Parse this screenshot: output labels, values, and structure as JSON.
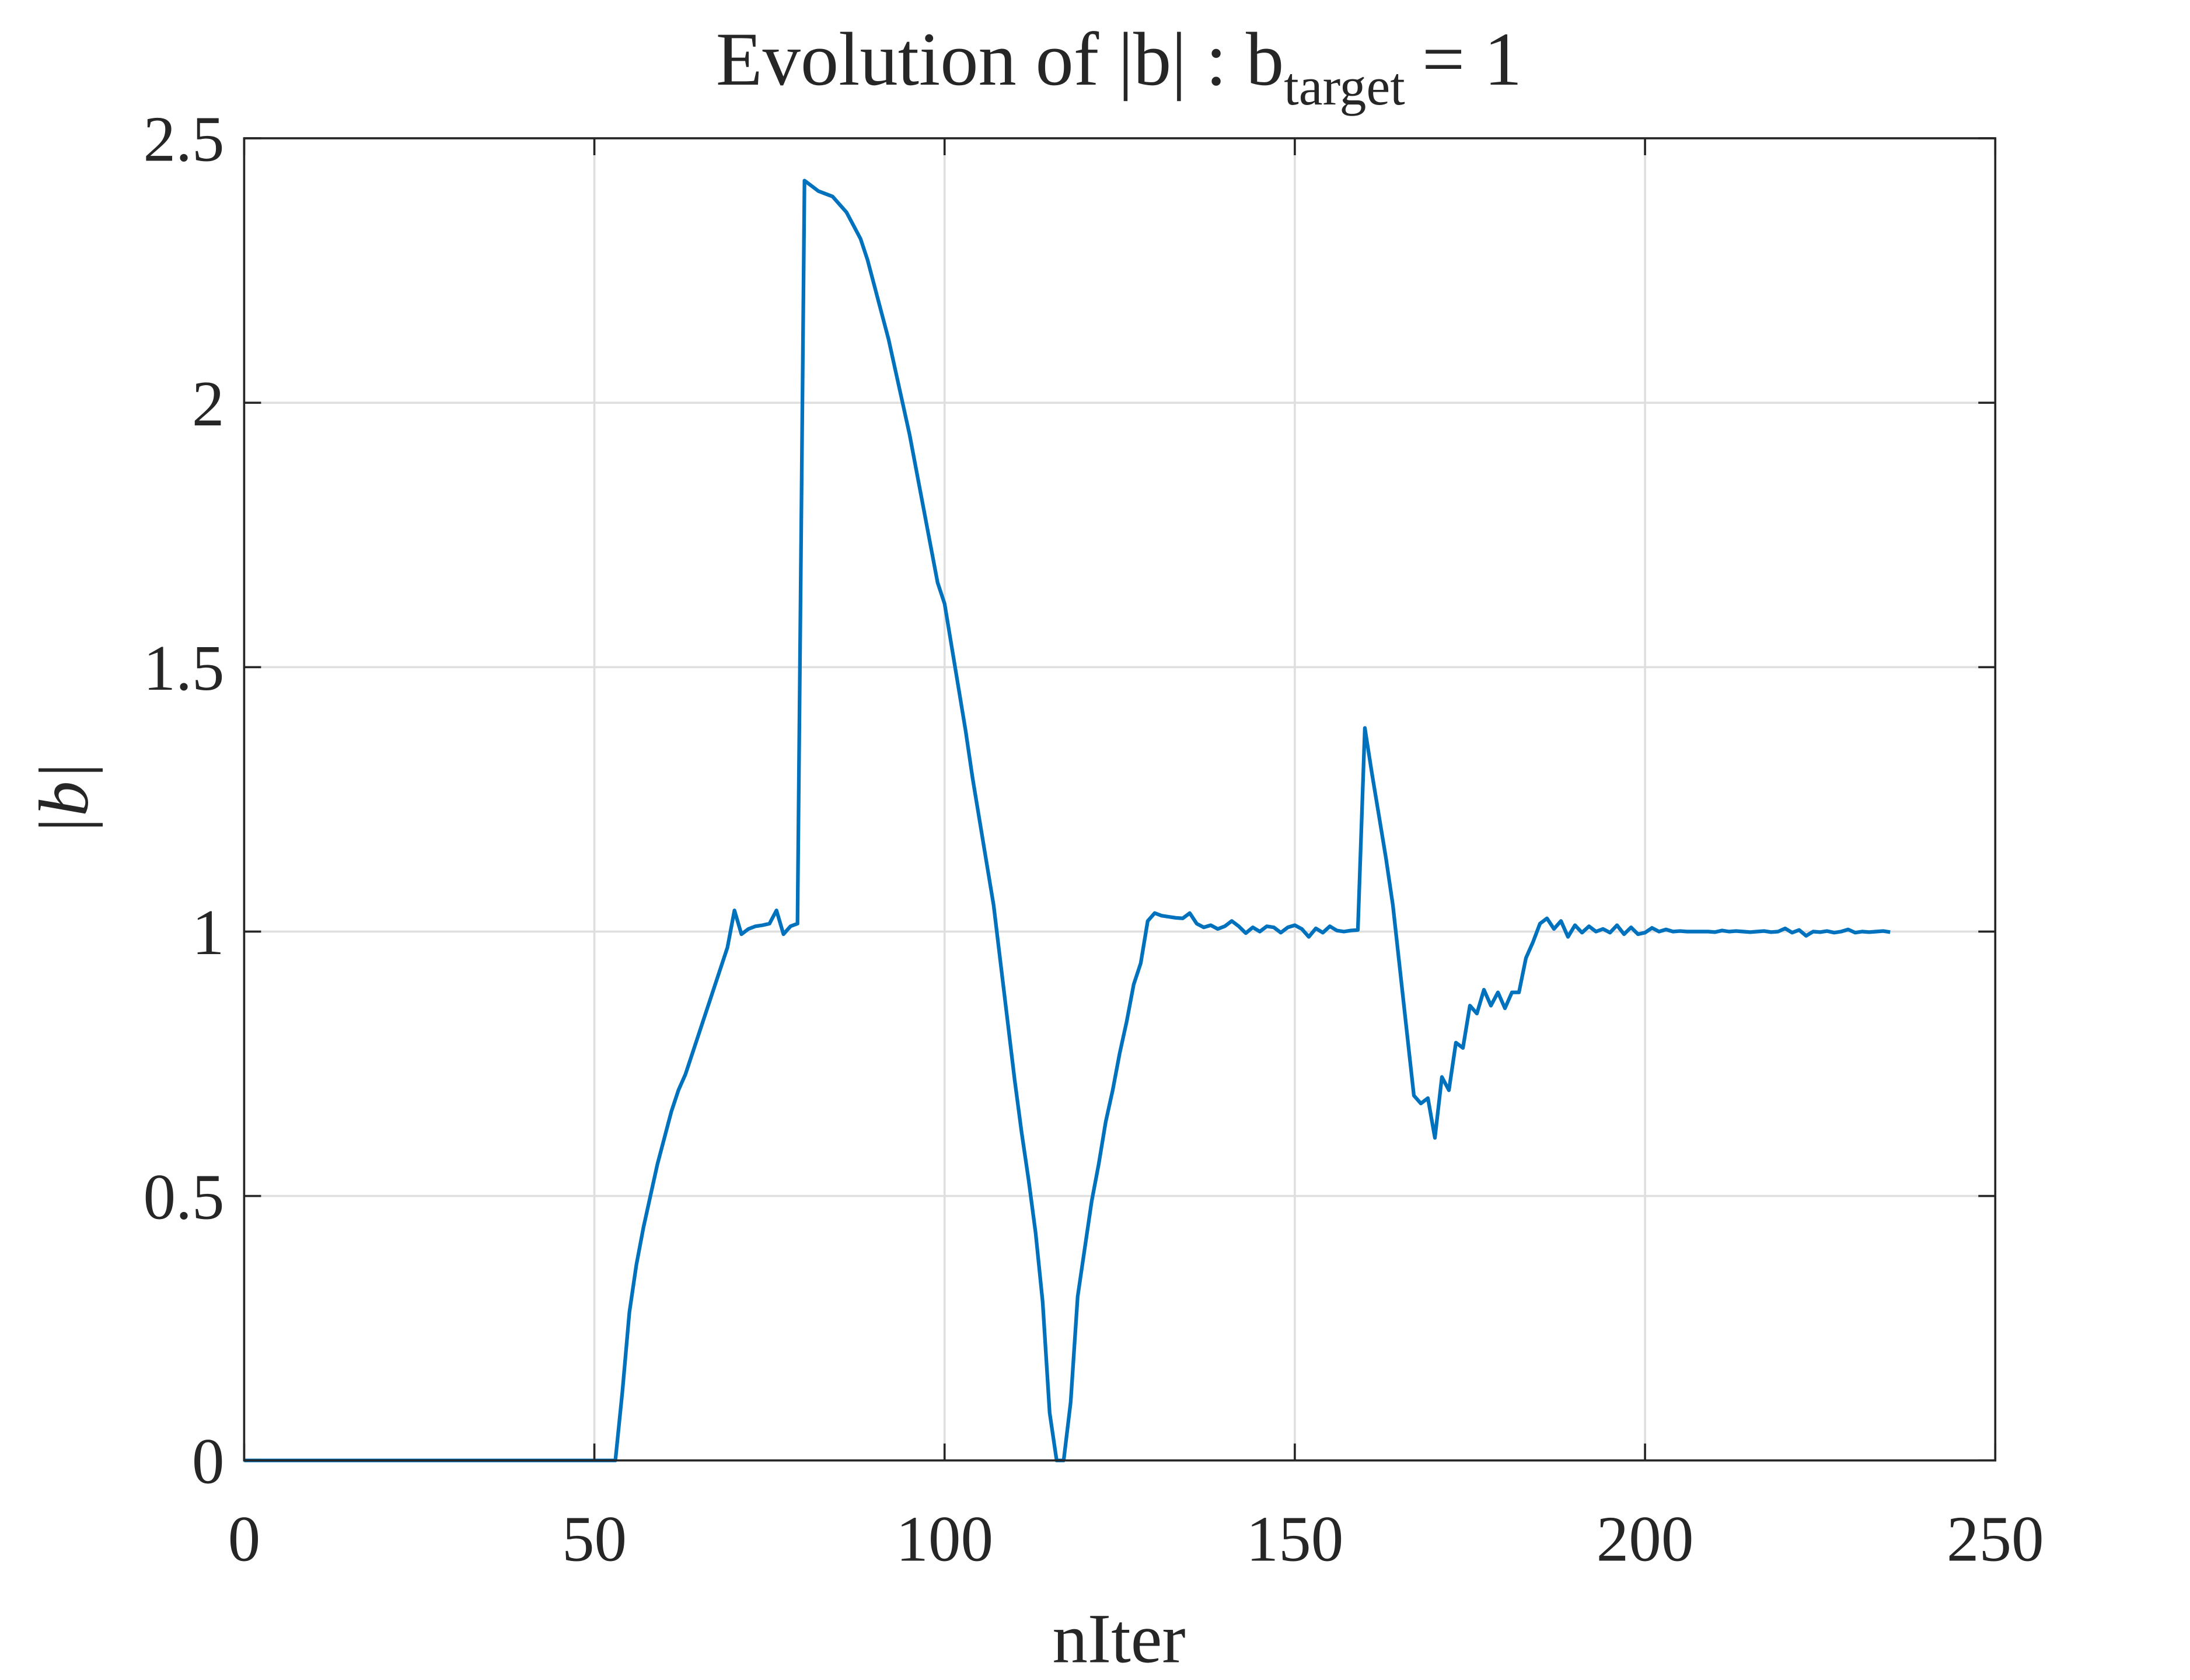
{
  "chart_data": {
    "type": "line",
    "title": {
      "main": "Evolution of |b| : b",
      "subscript": "target",
      "tail": "= 1"
    },
    "xlabel": "nIter",
    "ylabel": "|b|",
    "color": "#0072bd",
    "grid": true,
    "xlim": [
      0,
      250
    ],
    "xticks": [
      0,
      50,
      100,
      150,
      200,
      250
    ],
    "ylim": [
      0,
      2.5
    ],
    "yticks": [
      0,
      0.5,
      1,
      1.5,
      2,
      2.5
    ],
    "x": [
      0,
      1,
      2,
      3,
      4,
      5,
      6,
      7,
      8,
      9,
      10,
      11,
      12,
      13,
      14,
      15,
      16,
      17,
      18,
      19,
      20,
      21,
      22,
      23,
      24,
      25,
      26,
      27,
      28,
      29,
      30,
      31,
      32,
      33,
      34,
      35,
      36,
      37,
      38,
      39,
      40,
      41,
      42,
      43,
      44,
      45,
      46,
      47,
      48,
      49,
      50,
      51,
      52,
      53,
      54,
      55,
      56,
      57,
      58,
      59,
      60,
      61,
      62,
      63,
      64,
      65,
      66,
      67,
      68,
      69,
      70,
      71,
      72,
      73,
      74,
      75,
      76,
      77,
      78,
      79,
      80,
      81,
      82,
      83,
      84,
      85,
      86,
      87,
      88,
      89,
      90,
      91,
      92,
      93,
      94,
      95,
      96,
      97,
      98,
      99,
      100,
      101,
      102,
      103,
      104,
      105,
      106,
      107,
      108,
      109,
      110,
      111,
      112,
      113,
      114,
      115,
      116,
      117,
      118,
      119,
      120,
      121,
      122,
      123,
      124,
      125,
      126,
      127,
      128,
      129,
      130,
      131,
      132,
      133,
      134,
      135,
      136,
      137,
      138,
      139,
      140,
      141,
      142,
      143,
      144,
      145,
      146,
      147,
      148,
      149,
      150,
      151,
      152,
      153,
      154,
      155,
      156,
      157,
      158,
      159,
      160,
      161,
      162,
      163,
      164,
      165,
      166,
      167,
      168,
      169,
      170,
      171,
      172,
      173,
      174,
      175,
      176,
      177,
      178,
      179,
      180,
      181,
      182,
      183,
      184,
      185,
      186,
      187,
      188,
      189,
      190,
      191,
      192,
      193,
      194,
      195,
      196,
      197,
      198,
      199,
      200,
      201,
      202,
      203,
      204,
      205,
      206,
      207,
      208,
      209,
      210,
      211,
      212,
      213,
      214,
      215,
      216,
      217,
      218,
      219,
      220,
      221,
      222,
      223,
      224,
      225,
      226,
      227,
      228,
      229,
      230,
      231,
      232,
      233,
      234,
      235
    ],
    "values": [
      0,
      0,
      0,
      0,
      0,
      0,
      0,
      0,
      0,
      0,
      0,
      0,
      0,
      0,
      0,
      0,
      0,
      0,
      0,
      0,
      0,
      0,
      0,
      0,
      0,
      0,
      0,
      0,
      0,
      0,
      0,
      0,
      0,
      0,
      0,
      0,
      0,
      0,
      0,
      0,
      0,
      0,
      0,
      0,
      0,
      0,
      0,
      0,
      0,
      0,
      0,
      0,
      0,
      0,
      0.13,
      0.28,
      0.37,
      0.44,
      0.5,
      0.56,
      0.61,
      0.66,
      0.7,
      0.73,
      0.77,
      0.81,
      0.85,
      0.89,
      0.93,
      0.97,
      1.04,
      0.995,
      1.005,
      1.01,
      1.012,
      1.015,
      1.04,
      0.995,
      1.01,
      1.015,
      2.42,
      2.41,
      2.4,
      2.395,
      2.39,
      2.375,
      2.36,
      2.335,
      2.31,
      2.27,
      2.22,
      2.17,
      2.12,
      2.06,
      2.0,
      1.94,
      1.87,
      1.8,
      1.73,
      1.66,
      1.62,
      1.54,
      1.46,
      1.38,
      1.29,
      1.21,
      1.13,
      1.05,
      0.94,
      0.83,
      0.72,
      0.62,
      0.53,
      0.43,
      0.3,
      0.09,
      0,
      0,
      0.11,
      0.31,
      0.4,
      0.49,
      0.56,
      0.64,
      0.7,
      0.77,
      0.83,
      0.9,
      0.94,
      1.02,
      1.035,
      1.03,
      1.028,
      1.026,
      1.025,
      1.035,
      1.015,
      1.008,
      1.012,
      1.005,
      1.01,
      1.02,
      1.01,
      0.997,
      1.008,
      1.0,
      1.01,
      1.008,
      0.998,
      1.008,
      1.012,
      1.005,
      0.99,
      1.006,
      0.998,
      1.01,
      1.002,
      1.0,
      1.002,
      1.003,
      1.385,
      1.3,
      1.22,
      1.14,
      1.05,
      0.93,
      0.81,
      0.69,
      0.675,
      0.685,
      0.61,
      0.725,
      0.7,
      0.79,
      0.78,
      0.86,
      0.845,
      0.89,
      0.86,
      0.885,
      0.855,
      0.885,
      0.885,
      0.95,
      0.98,
      1.015,
      1.025,
      1.005,
      1.02,
      0.99,
      1.012,
      0.998,
      1.01,
      1.0,
      1.005,
      0.998,
      1.012,
      0.995,
      1.008,
      0.995,
      0.998,
      1.007,
      1.0,
      1.004,
      1.0,
      1.001,
      1.0,
      1.0,
      1.0,
      1.0,
      0.999,
      1.002,
      1.0,
      1.001,
      1.0,
      0.999,
      1.0,
      1.001,
      0.999,
      1.0,
      1.006,
      0.998,
      1.003,
      0.992,
      1.0,
      0.999,
      1.001,
      0.998,
      1.0,
      1.004,
      0.998,
      1.0,
      0.999,
      1.0,
      1.001,
      0.999
    ]
  }
}
